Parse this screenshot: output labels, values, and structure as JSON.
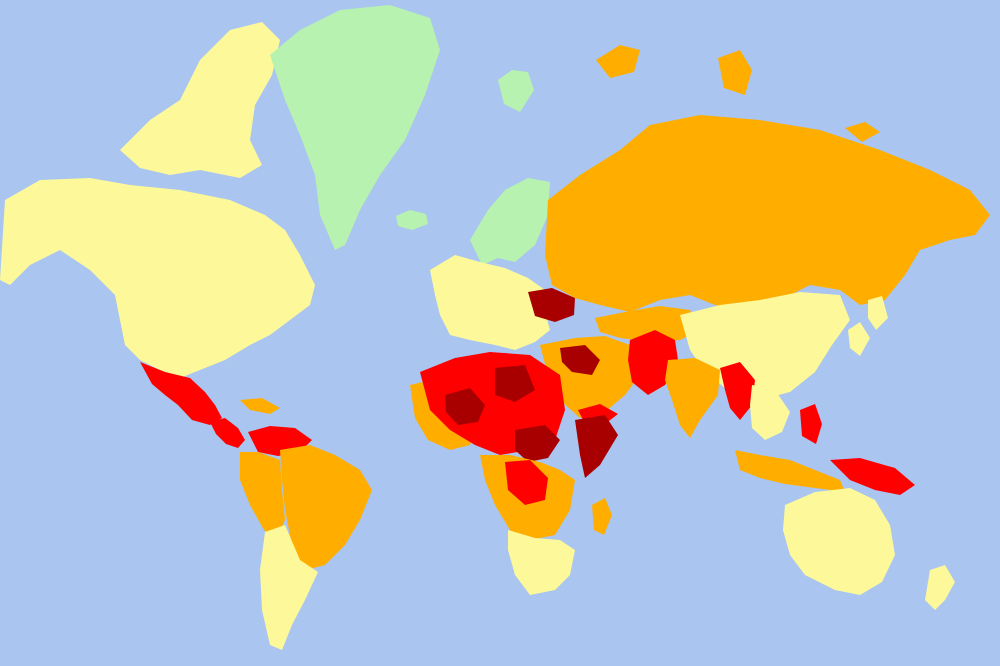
{
  "map": {
    "ocean_color": "#a9c5f0",
    "risk_colors": {
      "green": "#b7f2b0",
      "yellow": "#fdf99a",
      "orange": "#ffae00",
      "red": "#ff0000",
      "dark_red": "#a80000"
    },
    "regions": [
      {
        "name": "north-america",
        "risk": "yellow"
      },
      {
        "name": "canadian-arctic-islands",
        "risk": "yellow"
      },
      {
        "name": "greenland",
        "risk": "green"
      },
      {
        "name": "iceland",
        "risk": "green"
      },
      {
        "name": "svalbard",
        "risk": "green"
      },
      {
        "name": "mexico",
        "risk": "red"
      },
      {
        "name": "central-america",
        "risk": "red"
      },
      {
        "name": "caribbean",
        "risk": "orange"
      },
      {
        "name": "venezuela",
        "risk": "red"
      },
      {
        "name": "south-america-north",
        "risk": "orange"
      },
      {
        "name": "brazil",
        "risk": "orange"
      },
      {
        "name": "south-america-south",
        "risk": "yellow"
      },
      {
        "name": "scandinavia",
        "risk": "green"
      },
      {
        "name": "europe",
        "risk": "yellow"
      },
      {
        "name": "ukraine",
        "risk": "dark_red"
      },
      {
        "name": "russia",
        "risk": "orange"
      },
      {
        "name": "russian-arctic-islands",
        "risk": "orange"
      },
      {
        "name": "central-asia",
        "risk": "orange"
      },
      {
        "name": "china-mongolia",
        "risk": "yellow"
      },
      {
        "name": "japan-korea",
        "risk": "yellow"
      },
      {
        "name": "middle-east",
        "risk": "orange"
      },
      {
        "name": "syria-iraq",
        "risk": "dark_red"
      },
      {
        "name": "yemen",
        "risk": "red"
      },
      {
        "name": "afghanistan-pakistan",
        "risk": "red"
      },
      {
        "name": "india",
        "risk": "orange"
      },
      {
        "name": "myanmar",
        "risk": "red"
      },
      {
        "name": "southeast-asia",
        "risk": "yellow"
      },
      {
        "name": "philippines",
        "risk": "red"
      },
      {
        "name": "indonesia",
        "risk": "orange"
      },
      {
        "name": "papua",
        "risk": "red"
      },
      {
        "name": "australia",
        "risk": "yellow"
      },
      {
        "name": "new-zealand",
        "risk": "yellow"
      },
      {
        "name": "sahel",
        "risk": "red"
      },
      {
        "name": "mali-region",
        "risk": "dark_red"
      },
      {
        "name": "libya",
        "risk": "dark_red"
      },
      {
        "name": "sudan-region",
        "risk": "dark_red"
      },
      {
        "name": "somalia",
        "risk": "dark_red"
      },
      {
        "name": "west-africa-coast",
        "risk": "orange"
      },
      {
        "name": "central-africa",
        "risk": "orange"
      },
      {
        "name": "drc",
        "risk": "red"
      },
      {
        "name": "southern-africa",
        "risk": "yellow"
      },
      {
        "name": "madagascar",
        "risk": "orange"
      }
    ]
  }
}
